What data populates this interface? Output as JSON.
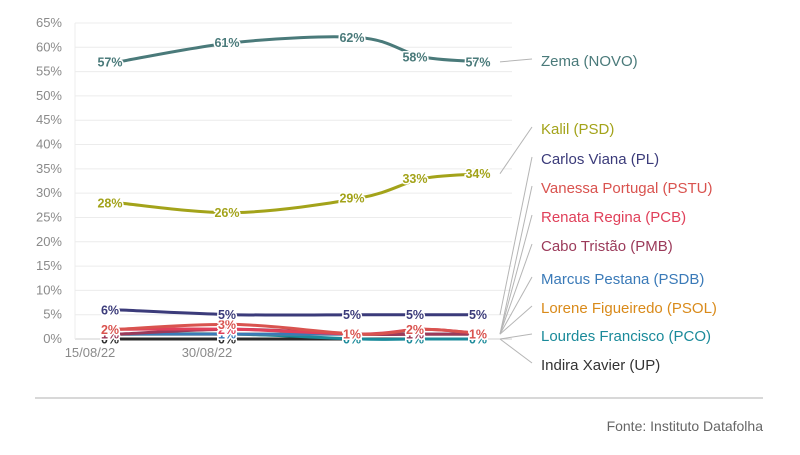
{
  "chart_data": {
    "type": "line",
    "x": [
      "15/08/22",
      "30/08/22",
      "",
      "",
      ""
    ],
    "x_tick_labels": [
      "15/08/22",
      "30/08/22"
    ],
    "y_ticks": [
      "0%",
      "5%",
      "10%",
      "15%",
      "20%",
      "25%",
      "30%",
      "35%",
      "40%",
      "45%",
      "50%",
      "55%",
      "60%",
      "65%"
    ],
    "ylim": [
      0,
      65
    ],
    "grid": true,
    "series": [
      {
        "name": "Zema (NOVO)",
        "color": "#4a7a7a",
        "values": [
          57,
          61,
          62,
          58,
          57
        ],
        "labels": [
          "57%",
          "61%",
          "62%",
          "58%",
          "57%"
        ]
      },
      {
        "name": "Kalil (PSD)",
        "color": "#a3a31a",
        "values": [
          28,
          26,
          29,
          33,
          34
        ],
        "labels": [
          "28%",
          "26%",
          "29%",
          "33%",
          "34%"
        ]
      },
      {
        "name": "Carlos Viana (PL)",
        "color": "#3b3b7a",
        "values": [
          6,
          5,
          5,
          5,
          5
        ],
        "labels": [
          "6%",
          "5%",
          "5%",
          "5%",
          "5%"
        ]
      },
      {
        "name": "Vanessa Portugal (PSTU)",
        "color": "#d9534f",
        "values": [
          2,
          3,
          1,
          2,
          1
        ],
        "labels": [
          "2%",
          "3%",
          "1%",
          "2%",
          "1%"
        ]
      },
      {
        "name": "Renata Regina (PCB)",
        "color": "#e0405a",
        "values": [
          2,
          2,
          1,
          2,
          1
        ],
        "labels": [
          "2%",
          "2%",
          "1%",
          "2%",
          "1%"
        ]
      },
      {
        "name": "Cabo Tristão (PMB)",
        "color": "#9b3a5a",
        "values": [
          1,
          2,
          1,
          1,
          1
        ],
        "labels": [
          "1%",
          "2%",
          "1%",
          "1%",
          "1%"
        ]
      },
      {
        "name": "Marcus Pestana (PSDB)",
        "color": "#3a7ab8",
        "values": [
          1,
          1,
          1,
          1,
          1
        ],
        "labels": [
          "1%",
          "1%",
          "1%",
          "1%",
          "1%"
        ]
      },
      {
        "name": "Lorene Figueiredo (PSOL)",
        "color": "#d98a1a",
        "values": [
          1,
          1,
          1,
          1,
          1
        ],
        "labels": [
          "1%",
          "1%",
          "1%",
          "1%",
          "1%"
        ]
      },
      {
        "name": "Lourdes Francisco (PCO)",
        "color": "#1a8a9a",
        "values": [
          1,
          1,
          0,
          0,
          0
        ],
        "labels": [
          "1%",
          "1%",
          "0%",
          "0%",
          "0%"
        ]
      },
      {
        "name": "Indira Xavier (UP)",
        "color": "#2a2a2a",
        "values": [
          0,
          0,
          0,
          0,
          0
        ],
        "labels": [
          "0%",
          "0%",
          "0%",
          "0%",
          "0%"
        ]
      }
    ]
  },
  "source": "Fonte: Instituto Datafolha"
}
